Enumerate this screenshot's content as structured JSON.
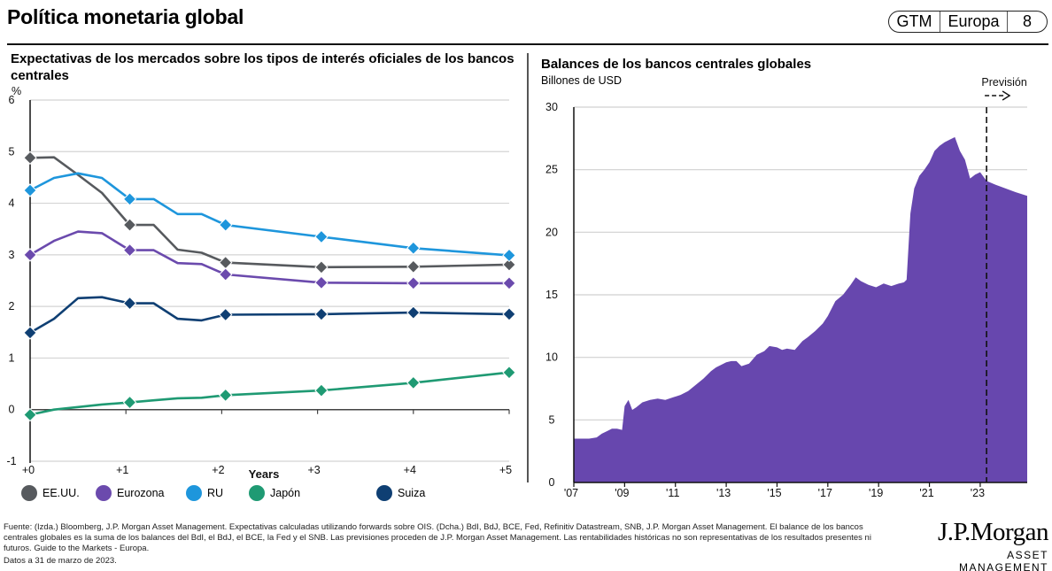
{
  "header": {
    "title": "Política monetaria global",
    "badge": [
      "GTM",
      "Europa",
      "8"
    ]
  },
  "chart_data": [
    {
      "type": "line",
      "title": "Expectativas de los mercados sobre los tipos de interés oficiales de los bancos centrales",
      "ylabel": "%",
      "xlabel": "Years",
      "ylim": [
        -1,
        6
      ],
      "yticks": [
        -1,
        0,
        1,
        2,
        3,
        4,
        5,
        6
      ],
      "xlim": [
        0,
        5
      ],
      "xticks": [
        "+0",
        "+1",
        "+2",
        "+3",
        "+4",
        "+5"
      ],
      "grid": true,
      "legend_position": "bottom",
      "series": [
        {
          "name": "EE.UU.",
          "color": "#575a5e",
          "x": [
            0,
            0.25,
            0.5,
            0.75,
            1.04,
            1.29,
            1.54,
            1.79,
            2.04,
            3.04,
            4.0,
            5.0
          ],
          "values": [
            4.88,
            4.89,
            4.55,
            4.2,
            3.58,
            3.58,
            3.1,
            3.04,
            2.85,
            2.76,
            2.77,
            2.81
          ],
          "markers": [
            0,
            4,
            8,
            9,
            10,
            11
          ]
        },
        {
          "name": "Eurozona",
          "color": "#6b4aad",
          "x": [
            0,
            0.25,
            0.5,
            0.75,
            1.04,
            1.29,
            1.54,
            1.79,
            2.04,
            3.04,
            4.0,
            5.0
          ],
          "values": [
            3.0,
            3.27,
            3.45,
            3.42,
            3.09,
            3.09,
            2.84,
            2.82,
            2.62,
            2.46,
            2.45,
            2.45
          ],
          "markers": [
            0,
            4,
            8,
            9,
            10,
            11
          ]
        },
        {
          "name": "RU",
          "color": "#1e96dc",
          "x": [
            0,
            0.25,
            0.5,
            0.75,
            1.04,
            1.29,
            1.54,
            1.79,
            2.04,
            3.04,
            4.0,
            5.0
          ],
          "values": [
            4.25,
            4.49,
            4.58,
            4.49,
            4.08,
            4.08,
            3.79,
            3.79,
            3.58,
            3.35,
            3.13,
            2.99
          ],
          "markers": [
            0,
            4,
            8,
            9,
            10,
            11
          ]
        },
        {
          "name": "Japón",
          "color": "#1f9a73",
          "x": [
            0,
            0.25,
            0.5,
            0.75,
            1.04,
            1.29,
            1.54,
            1.79,
            2.04,
            3.04,
            4.0,
            5.0
          ],
          "values": [
            -0.1,
            0.0,
            0.05,
            0.1,
            0.14,
            0.18,
            0.22,
            0.23,
            0.28,
            0.37,
            0.52,
            0.72
          ],
          "markers": [
            0,
            4,
            8,
            9,
            10,
            11
          ]
        },
        {
          "name": "Suiza",
          "color": "#0f3f73",
          "x": [
            0,
            0.25,
            0.5,
            0.75,
            1.04,
            1.29,
            1.54,
            1.79,
            2.04,
            3.04,
            4.0,
            5.0
          ],
          "values": [
            1.49,
            1.76,
            2.16,
            2.18,
            2.06,
            2.06,
            1.76,
            1.73,
            1.84,
            1.85,
            1.88,
            1.85
          ],
          "markers": [
            0,
            4,
            8,
            9,
            10,
            11
          ]
        }
      ]
    },
    {
      "type": "area",
      "title": "Balances de los bancos centrales globales",
      "subtitle": "Billones de USD",
      "ylim": [
        0,
        30
      ],
      "yticks": [
        0,
        5,
        10,
        15,
        20,
        25,
        30
      ],
      "xlim": [
        2007,
        2024.85
      ],
      "xticks": [
        "'07",
        "'09",
        "'11",
        "'13",
        "'15",
        "'17",
        "'19",
        "'21",
        "'23"
      ],
      "xtick_values": [
        2007,
        2009,
        2011,
        2013,
        2015,
        2017,
        2019,
        2021,
        2023
      ],
      "grid": true,
      "color": "#6747ae",
      "forecast_label": "Previsión",
      "forecast_start": 2023.25,
      "x": [
        2007.0,
        2007.4,
        2007.6,
        2007.9,
        2008.1,
        2008.3,
        2008.5,
        2008.7,
        2008.9,
        2009.0,
        2009.15,
        2009.3,
        2009.45,
        2009.7,
        2010.0,
        2010.3,
        2010.6,
        2010.9,
        2011.2,
        2011.5,
        2011.8,
        2012.1,
        2012.4,
        2012.6,
        2012.8,
        2013.0,
        2013.2,
        2013.4,
        2013.6,
        2013.9,
        2014.2,
        2014.5,
        2014.7,
        2015.0,
        2015.2,
        2015.4,
        2015.7,
        2016.0,
        2016.2,
        2016.5,
        2016.8,
        2017.0,
        2017.3,
        2017.6,
        2017.9,
        2018.1,
        2018.3,
        2018.6,
        2018.9,
        2019.2,
        2019.5,
        2019.8,
        2020.0,
        2020.1,
        2020.25,
        2020.4,
        2020.6,
        2020.8,
        2021.0,
        2021.2,
        2021.4,
        2021.6,
        2021.8,
        2022.0,
        2022.2,
        2022.4,
        2022.6,
        2022.8,
        2023.0,
        2023.25,
        2023.6,
        2024.0,
        2024.4,
        2024.85
      ],
      "values": [
        3.5,
        3.5,
        3.5,
        3.6,
        3.9,
        4.1,
        4.3,
        4.3,
        4.2,
        6.1,
        6.6,
        5.8,
        6.0,
        6.4,
        6.6,
        6.7,
        6.6,
        6.8,
        7.0,
        7.3,
        7.8,
        8.3,
        8.9,
        9.2,
        9.4,
        9.6,
        9.7,
        9.7,
        9.3,
        9.5,
        10.2,
        10.5,
        10.9,
        10.8,
        10.6,
        10.7,
        10.6,
        11.3,
        11.6,
        12.1,
        12.7,
        13.3,
        14.5,
        15.0,
        15.8,
        16.4,
        16.1,
        15.8,
        15.6,
        15.9,
        15.7,
        15.9,
        16.0,
        16.2,
        21.5,
        23.5,
        24.5,
        25.0,
        25.6,
        26.5,
        26.9,
        27.2,
        27.4,
        27.6,
        26.5,
        25.8,
        24.3,
        24.6,
        24.8,
        24.1,
        23.8,
        23.5,
        23.2,
        22.9
      ]
    }
  ],
  "legend": [
    {
      "label": "EE.UU.",
      "color": "#575a5e"
    },
    {
      "label": "Eurozona",
      "color": "#6b4aad"
    },
    {
      "label": "RU",
      "color": "#1e96dc"
    },
    {
      "label": "Japón",
      "color": "#1f9a73"
    },
    {
      "label": "Suiza",
      "color": "#0f3f73"
    }
  ],
  "footnote": {
    "source": "Fuente: (Izda.) Bloomberg, J.P. Morgan Asset Management. Expectativas calculadas utilizando forwards sobre OIS. (Dcha.) BdI, BdJ, BCE, Fed, Refinitiv Datastream, SNB, J.P. Morgan Asset Management. El balance de los bancos centrales globales es la suma de los balances del BdI, el BdJ, el BCE, la Fed y el SNB. Las previsiones proceden de J.P. Morgan Asset Management. Las rentabilidades históricas no son representativas de los resultados presentes ni futuros. Guide to the Markets - Europa.",
    "date": "Datos a 31 de marzo de 2023."
  },
  "logo": {
    "main": "J.P.Morgan",
    "sub": "ASSET MANAGEMENT"
  }
}
